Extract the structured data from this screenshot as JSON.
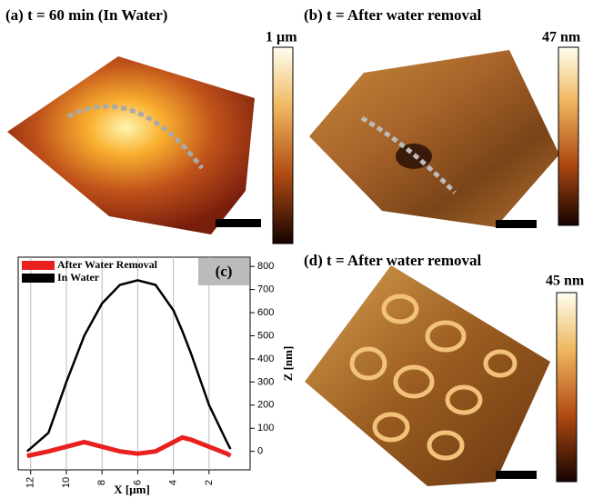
{
  "panels": {
    "a": {
      "title": "(a) t = 60 min (In Water)",
      "colorbar_max": "1 µm"
    },
    "b": {
      "title": "(b) t = After water removal",
      "colorbar_max": "47 nm"
    },
    "d": {
      "title": "(d) t = After water removal",
      "colorbar_max": "45 nm"
    }
  },
  "chart_data": {
    "type": "line",
    "panel_label": "(c)",
    "x_label": "X [µm]",
    "y_label": "Z [nm]",
    "x": [
      12.2,
      11,
      10,
      9,
      8,
      7,
      6,
      5,
      4,
      3.5,
      3,
      2,
      1,
      0.8
    ],
    "series": [
      {
        "name": "After Water Removal",
        "color": "#e8211f",
        "values": [
          -20,
          0,
          20,
          40,
          20,
          0,
          -10,
          0,
          40,
          60,
          50,
          20,
          -10,
          -20
        ]
      },
      {
        "name": "In Water",
        "color": "#000000",
        "values": [
          0,
          80,
          300,
          500,
          640,
          720,
          740,
          720,
          610,
          520,
          420,
          200,
          40,
          10
        ]
      }
    ],
    "xlim": [
      12.7,
      -0.3
    ],
    "xticks": [
      12,
      10,
      8,
      6,
      4,
      2
    ],
    "ylim": [
      -80,
      840
    ],
    "yticks": [
      0,
      100,
      200,
      300,
      400,
      500,
      600,
      700,
      800
    ],
    "grid": true
  }
}
